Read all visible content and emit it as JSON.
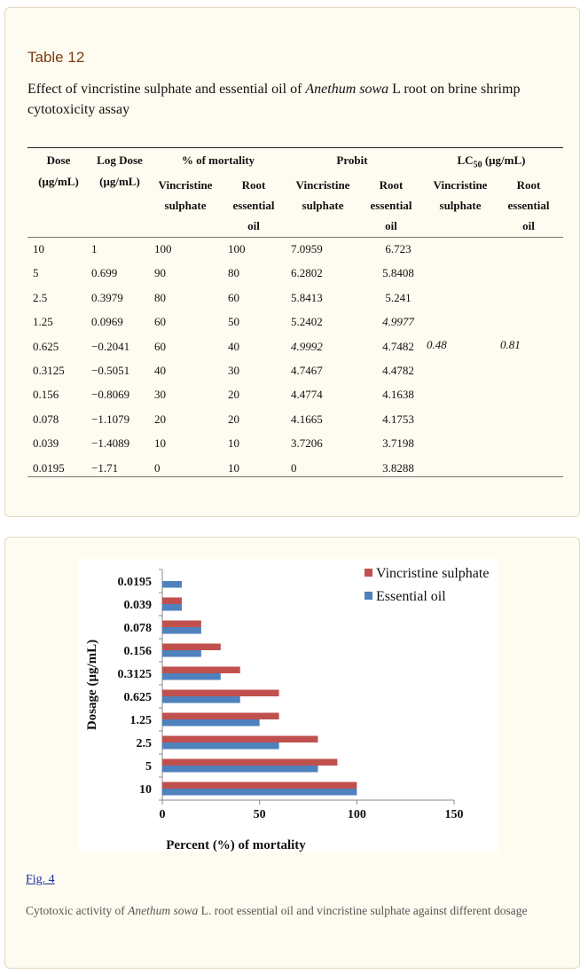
{
  "table": {
    "label": "Table 12",
    "caption_pre": "Effect of vincristine sulphate and essential oil of ",
    "caption_species": "Anethum sowa",
    "caption_post": " L root on brine shrimp cytotoxicity assay",
    "headers": {
      "dose": "Dose",
      "dose_unit": "(μg/mL)",
      "log_dose": "Log Dose",
      "log_dose_unit": "(μg/mL)",
      "mortality": "% of mortality",
      "probit": "Probit",
      "lc50_pre": "LC",
      "lc50_sub": "50",
      "lc50_post": " (μg/mL)",
      "vincristine": "Vincristine sulphate",
      "root_oil": "Root essential oil"
    },
    "rows": [
      [
        "10",
        "1",
        "100",
        "100",
        "7.0959",
        "6.723"
      ],
      [
        "5",
        "0.699",
        "90",
        "80",
        "6.2802",
        "5.8408"
      ],
      [
        "2.5",
        "0.3979",
        "80",
        "60",
        "5.8413",
        "5.241"
      ],
      [
        "1.25",
        "0.0969",
        "60",
        "50",
        "5.2402",
        "4.9977"
      ],
      [
        "0.625",
        "−0.2041",
        "60",
        "40",
        "4.9992",
        "4.7482"
      ],
      [
        "0.3125",
        "−0.5051",
        "40",
        "30",
        "4.7467",
        "4.4782"
      ],
      [
        "0.156",
        "−0.8069",
        "30",
        "20",
        "4.4774",
        "4.1638"
      ],
      [
        "0.078",
        "−1.1079",
        "20",
        "20",
        "4.1665",
        "4.1753"
      ],
      [
        "0.039",
        "−1.4089",
        "10",
        "10",
        "3.7206",
        "3.7198"
      ],
      [
        "0.0195",
        "−1.71",
        "0",
        "10",
        "0",
        "3.8288"
      ]
    ],
    "lc50_vincristine": "0.48",
    "lc50_oil": "0.81"
  },
  "figure": {
    "link_text": "Fig. 4",
    "caption_pre": "Cytotoxic activity of ",
    "caption_species": "Anethum sowa",
    "caption_post": " L. root essential oil and vincristine sulphate against different dosage"
  },
  "chart_data": {
    "type": "bar",
    "orientation": "horizontal",
    "title": "",
    "xlabel": "Percent (%) of mortality",
    "ylabel": "Dosage (μg/mL)",
    "categories": [
      "10",
      "5",
      "2.5",
      "1.25",
      "0.625",
      "0.3125",
      "0.156",
      "0.078",
      "0.039",
      "0.0195"
    ],
    "series": [
      {
        "name": "Vincristine sulphate",
        "color": "#c0504d",
        "values": [
          100,
          90,
          80,
          60,
          60,
          40,
          30,
          20,
          10,
          0
        ]
      },
      {
        "name": "Essential oil",
        "color": "#4f81bd",
        "values": [
          100,
          80,
          60,
          50,
          40,
          30,
          20,
          20,
          10,
          10
        ]
      }
    ],
    "xlim": [
      0,
      150
    ],
    "xticks": [
      "0",
      "50",
      "100",
      "150"
    ],
    "legend_position": "top-right",
    "grid": false
  }
}
